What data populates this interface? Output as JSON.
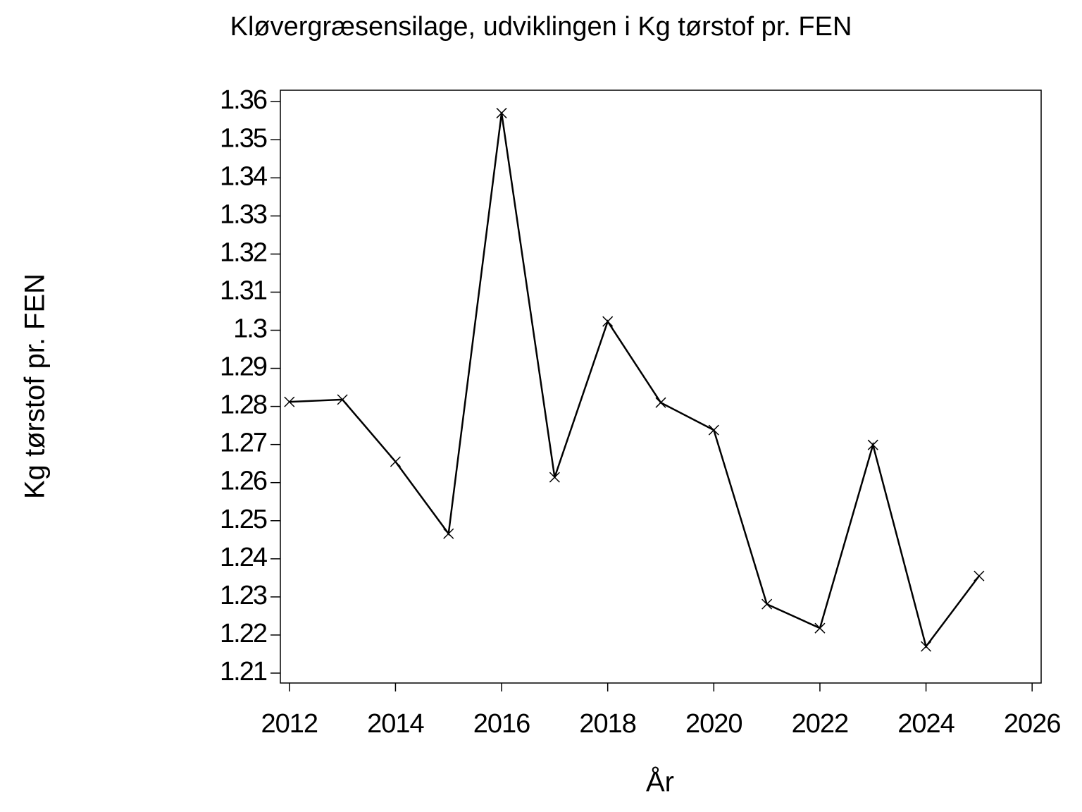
{
  "chart_data": {
    "type": "line",
    "title": "Kløvergræsensilage,  udviklingen  i  Kg  tørstof  pr.  FEN",
    "x_label": "År",
    "y_label": "Kg  tørstof  pr.  FEN",
    "x": [
      2012,
      2013,
      2014,
      2015,
      2016,
      2017,
      2018,
      2019,
      2020,
      2021,
      2022,
      2023,
      2024,
      2025
    ],
    "values": [
      1.2812,
      1.2818,
      1.2655,
      1.2466,
      1.357,
      1.2614,
      1.3023,
      1.281,
      1.2738,
      1.2281,
      1.2218,
      1.2699,
      1.217,
      1.2355
    ],
    "color": "#000000",
    "xlim": [
      2011.83,
      2026.17
    ],
    "xticks": [
      2012,
      2014,
      2016,
      2018,
      2020,
      2022,
      2024,
      2026
    ],
    "ylim": [
      1.2074,
      1.363
    ],
    "yticks": [
      1.21,
      1.22,
      1.23,
      1.24,
      1.25,
      1.26,
      1.27,
      1.28,
      1.29,
      1.3,
      1.31,
      1.32,
      1.33,
      1.34,
      1.35,
      1.36
    ],
    "grid": false
  }
}
